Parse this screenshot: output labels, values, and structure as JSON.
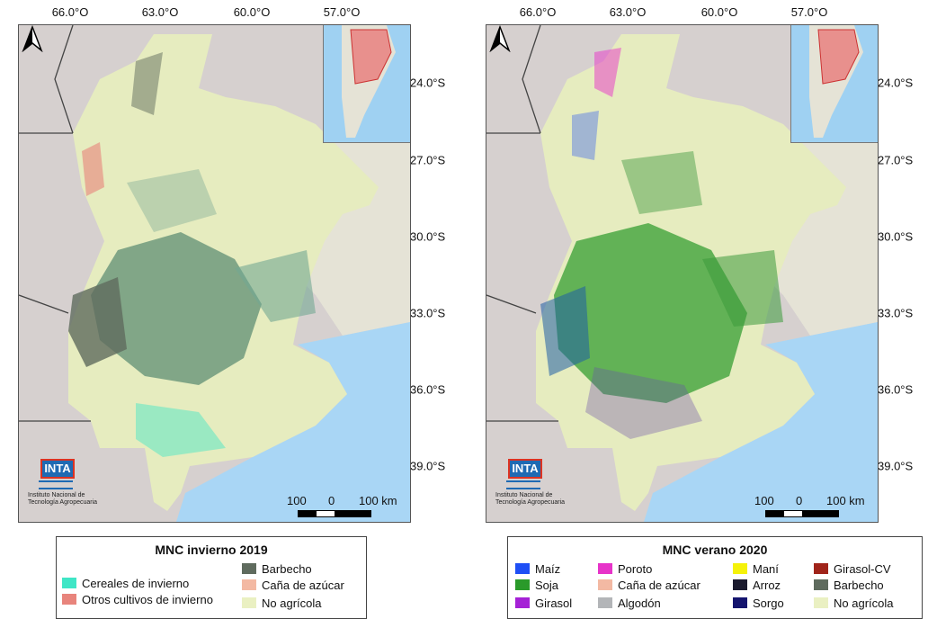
{
  "panels": {
    "left": {
      "x_ticks": [
        "66.0°O",
        "63.0°O",
        "60.0°O",
        "57.0°O"
      ],
      "y_ticks": [
        "24.0°S",
        "27.0°S",
        "30.0°S",
        "33.0°S",
        "36.0°S",
        "39.0°S"
      ],
      "scale": {
        "left": "100",
        "mid": "0",
        "right": "100 km"
      },
      "logo": {
        "name": "INTA",
        "line1": "Instituto Nacional de",
        "line2": "Tecnología Agropecuaria"
      },
      "legend": {
        "title": "MNC invierno 2019",
        "items": [
          {
            "label": "Cereales de invierno",
            "color": "#3fe6c6"
          },
          {
            "label": "Otros cultivos de invierno",
            "color": "#e8847c"
          },
          {
            "label": "Barbecho",
            "color": "#5f6b5e"
          },
          {
            "label": "Caña de azúcar",
            "color": "#f3b9a3"
          },
          {
            "label": "No agrícola",
            "color": "#eaf0c2"
          }
        ]
      }
    },
    "right": {
      "x_ticks": [
        "66.0°O",
        "63.0°O",
        "60.0°O",
        "57.0°O"
      ],
      "y_ticks": [
        "24.0°S",
        "27.0°S",
        "30.0°S",
        "33.0°S",
        "36.0°S",
        "39.0°S"
      ],
      "scale": {
        "left": "100",
        "mid": "0",
        "right": "100 km"
      },
      "logo": {
        "name": "INTA",
        "line1": "Instituto Nacional de",
        "line2": "Tecnología Agropecuaria"
      },
      "legend": {
        "title": "MNC verano 2020",
        "items": [
          {
            "label": "Maíz",
            "color": "#1f4ff5"
          },
          {
            "label": "Soja",
            "color": "#2a9a2a"
          },
          {
            "label": "Girasol",
            "color": "#a521d6"
          },
          {
            "label": "Poroto",
            "color": "#e733c9"
          },
          {
            "label": "Caña de azúcar",
            "color": "#f3b9a3"
          },
          {
            "label": "Algodón",
            "color": "#b3b5b8"
          },
          {
            "label": "Maní",
            "color": "#f5f20a"
          },
          {
            "label": "Arroz",
            "color": "#1b1b2e"
          },
          {
            "label": "Sorgo",
            "color": "#14146e"
          },
          {
            "label": "Girasol-CV",
            "color": "#a0241a"
          },
          {
            "label": "Barbecho",
            "color": "#5f6b5e"
          },
          {
            "label": "No agrícola",
            "color": "#eaf0c2"
          }
        ]
      }
    }
  },
  "colors": {
    "water": "#a9d6f5",
    "background_land": "#d6d0cf",
    "neighbor_land": "#e5e3d6",
    "region": "#e6ecbf",
    "inset_highlight": "#e87b7b"
  }
}
